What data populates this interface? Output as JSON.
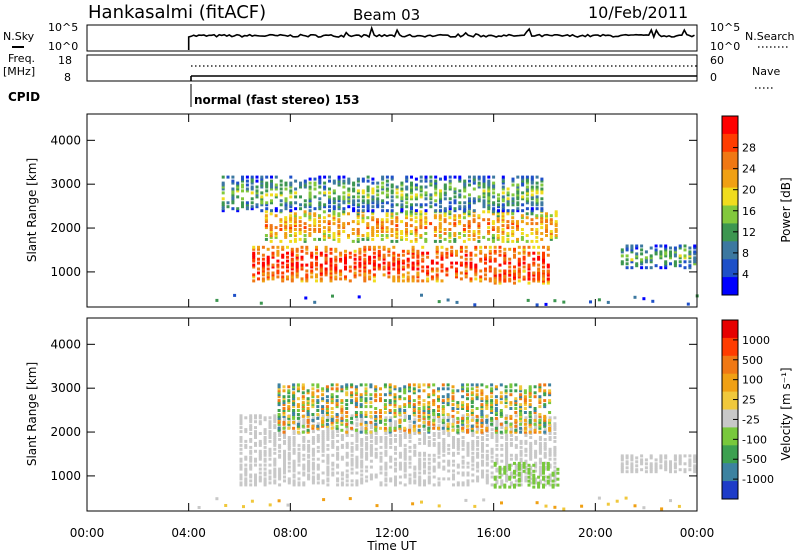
{
  "header": {
    "station": "Hankasalmi (fitACF)",
    "beam": "Beam 03",
    "date": "10/Feb/2011"
  },
  "status_panels": {
    "nsky_label": "N.Sky",
    "nsky_ticks": [
      "10^5",
      "10^0"
    ],
    "nsearch_label": "N.Search",
    "nsearch_ticks": [
      "10^5",
      "10^0"
    ],
    "freq_label_line1": "Freq.",
    "freq_label_line2": "[MHz]",
    "freq_ticks": [
      "18",
      "8"
    ],
    "nave_label": "Nave",
    "nave_ticks": [
      "60",
      "0"
    ],
    "cpid_label": "CPID",
    "cpid_text": "normal (fast stereo) 153"
  },
  "chart_data": [
    {
      "type": "heatmap",
      "name": "power",
      "ylabel": "Slant Range [km]",
      "yticks": [
        "1000",
        "2000",
        "3000",
        "4000"
      ],
      "ylim": [
        200,
        4600
      ],
      "xlim": [
        0,
        24
      ],
      "colorbar": {
        "label": "Power [dB]",
        "ticks": [
          "4",
          "8",
          "12",
          "16",
          "20",
          "24",
          "28"
        ],
        "colors": [
          "#0000ff",
          "#1e50c8",
          "#3c78a0",
          "#3c9650",
          "#82c83c",
          "#f0dc1e",
          "#f0a014",
          "#f07814",
          "#ff3c00",
          "#ff0000"
        ]
      },
      "features": [
        {
          "desc": "main echo band",
          "t_start": 6.5,
          "t_end": 18.2,
          "range_km": [
            800,
            1600
          ],
          "level": "high"
        },
        {
          "desc": "upper echo band",
          "t_start": 7.0,
          "t_end": 18.5,
          "range_km": [
            1700,
            2400
          ],
          "level": "medium"
        },
        {
          "desc": "far echoes",
          "t_start": 5.3,
          "t_end": 18.0,
          "range_km": [
            2400,
            3200
          ],
          "level": "low"
        },
        {
          "desc": "late patch",
          "t_start": 16.0,
          "t_end": 18.2,
          "range_km": [
            750,
            1050
          ],
          "level": "high"
        },
        {
          "desc": "evening echoes",
          "t_start": 21.0,
          "t_end": 24.0,
          "range_km": [
            1100,
            1600
          ],
          "level": "low"
        }
      ]
    },
    {
      "type": "heatmap",
      "name": "velocity",
      "ylabel": "Slant Range [km]",
      "yticks": [
        "1000",
        "2000",
        "3000",
        "4000"
      ],
      "ylim": [
        200,
        4600
      ],
      "xlim": [
        0,
        24
      ],
      "colorbar": {
        "label": "Velocity [m s⁻¹]",
        "ticks": [
          "1000",
          "500",
          "100",
          "25",
          "-25",
          "-100",
          "-500",
          "-1000"
        ],
        "colors": [
          "#1e3cc8",
          "#3c82a0",
          "#3ca050",
          "#78c83c",
          "#c8c8c8",
          "#f0c83c",
          "#f0a014",
          "#f07814",
          "#ff3c00",
          "#e60000"
        ]
      },
      "features": [
        {
          "desc": "ground scatter band",
          "t_start": 6.0,
          "t_end": 18.5,
          "range_km": [
            800,
            2400
          ],
          "value": "0"
        },
        {
          "desc": "ionospheric patches",
          "t_start": 7.5,
          "t_end": 18.2,
          "range_km": [
            2000,
            3100
          ],
          "value": "mixed"
        },
        {
          "desc": "green patch",
          "t_start": 16.0,
          "t_end": 18.5,
          "range_km": [
            750,
            1300
          ],
          "value": "100"
        },
        {
          "desc": "evening gray echoes",
          "t_start": 21.0,
          "t_end": 24.0,
          "range_km": [
            1100,
            1500
          ],
          "value": "0"
        }
      ]
    }
  ],
  "time_axis": {
    "label": "Time UT",
    "ticks": [
      "00:00",
      "04:00",
      "08:00",
      "12:00",
      "16:00",
      "20:00",
      "00:00"
    ]
  }
}
